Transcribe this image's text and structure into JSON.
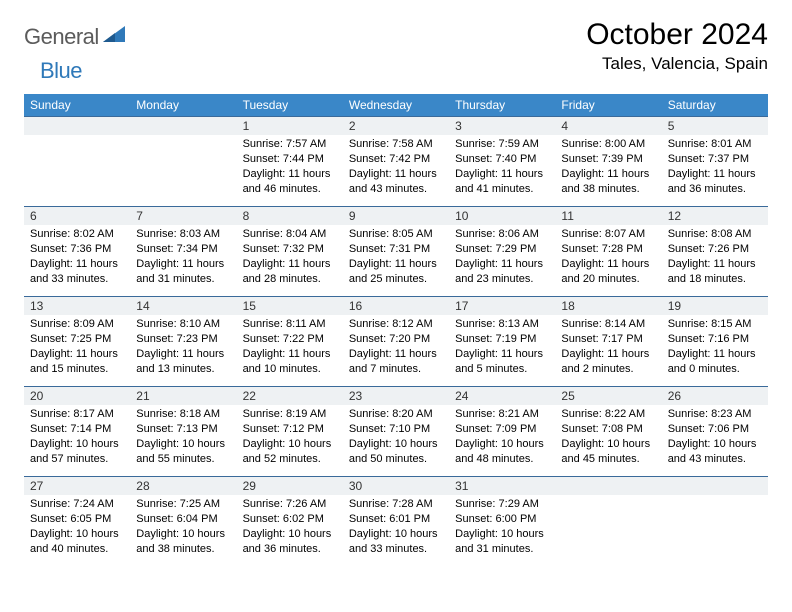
{
  "brand": {
    "word1": "General",
    "word2": "Blue",
    "triangle_color": "#2f79b9"
  },
  "title": {
    "month": "October 2024",
    "location": "Tales, Valencia, Spain"
  },
  "colors": {
    "header_bg": "#3a87c8",
    "header_text": "#ffffff",
    "cell_border": "#3a6a9a",
    "daynum_bg": "#eef1f3",
    "page_bg": "#ffffff"
  },
  "weekdays": [
    "Sunday",
    "Monday",
    "Tuesday",
    "Wednesday",
    "Thursday",
    "Friday",
    "Saturday"
  ],
  "weeks": [
    [
      {
        "n": "",
        "sr": "",
        "ss": "",
        "dl": ""
      },
      {
        "n": "",
        "sr": "",
        "ss": "",
        "dl": ""
      },
      {
        "n": "1",
        "sr": "Sunrise: 7:57 AM",
        "ss": "Sunset: 7:44 PM",
        "dl": "Daylight: 11 hours and 46 minutes."
      },
      {
        "n": "2",
        "sr": "Sunrise: 7:58 AM",
        "ss": "Sunset: 7:42 PM",
        "dl": "Daylight: 11 hours and 43 minutes."
      },
      {
        "n": "3",
        "sr": "Sunrise: 7:59 AM",
        "ss": "Sunset: 7:40 PM",
        "dl": "Daylight: 11 hours and 41 minutes."
      },
      {
        "n": "4",
        "sr": "Sunrise: 8:00 AM",
        "ss": "Sunset: 7:39 PM",
        "dl": "Daylight: 11 hours and 38 minutes."
      },
      {
        "n": "5",
        "sr": "Sunrise: 8:01 AM",
        "ss": "Sunset: 7:37 PM",
        "dl": "Daylight: 11 hours and 36 minutes."
      }
    ],
    [
      {
        "n": "6",
        "sr": "Sunrise: 8:02 AM",
        "ss": "Sunset: 7:36 PM",
        "dl": "Daylight: 11 hours and 33 minutes."
      },
      {
        "n": "7",
        "sr": "Sunrise: 8:03 AM",
        "ss": "Sunset: 7:34 PM",
        "dl": "Daylight: 11 hours and 31 minutes."
      },
      {
        "n": "8",
        "sr": "Sunrise: 8:04 AM",
        "ss": "Sunset: 7:32 PM",
        "dl": "Daylight: 11 hours and 28 minutes."
      },
      {
        "n": "9",
        "sr": "Sunrise: 8:05 AM",
        "ss": "Sunset: 7:31 PM",
        "dl": "Daylight: 11 hours and 25 minutes."
      },
      {
        "n": "10",
        "sr": "Sunrise: 8:06 AM",
        "ss": "Sunset: 7:29 PM",
        "dl": "Daylight: 11 hours and 23 minutes."
      },
      {
        "n": "11",
        "sr": "Sunrise: 8:07 AM",
        "ss": "Sunset: 7:28 PM",
        "dl": "Daylight: 11 hours and 20 minutes."
      },
      {
        "n": "12",
        "sr": "Sunrise: 8:08 AM",
        "ss": "Sunset: 7:26 PM",
        "dl": "Daylight: 11 hours and 18 minutes."
      }
    ],
    [
      {
        "n": "13",
        "sr": "Sunrise: 8:09 AM",
        "ss": "Sunset: 7:25 PM",
        "dl": "Daylight: 11 hours and 15 minutes."
      },
      {
        "n": "14",
        "sr": "Sunrise: 8:10 AM",
        "ss": "Sunset: 7:23 PM",
        "dl": "Daylight: 11 hours and 13 minutes."
      },
      {
        "n": "15",
        "sr": "Sunrise: 8:11 AM",
        "ss": "Sunset: 7:22 PM",
        "dl": "Daylight: 11 hours and 10 minutes."
      },
      {
        "n": "16",
        "sr": "Sunrise: 8:12 AM",
        "ss": "Sunset: 7:20 PM",
        "dl": "Daylight: 11 hours and 7 minutes."
      },
      {
        "n": "17",
        "sr": "Sunrise: 8:13 AM",
        "ss": "Sunset: 7:19 PM",
        "dl": "Daylight: 11 hours and 5 minutes."
      },
      {
        "n": "18",
        "sr": "Sunrise: 8:14 AM",
        "ss": "Sunset: 7:17 PM",
        "dl": "Daylight: 11 hours and 2 minutes."
      },
      {
        "n": "19",
        "sr": "Sunrise: 8:15 AM",
        "ss": "Sunset: 7:16 PM",
        "dl": "Daylight: 11 hours and 0 minutes."
      }
    ],
    [
      {
        "n": "20",
        "sr": "Sunrise: 8:17 AM",
        "ss": "Sunset: 7:14 PM",
        "dl": "Daylight: 10 hours and 57 minutes."
      },
      {
        "n": "21",
        "sr": "Sunrise: 8:18 AM",
        "ss": "Sunset: 7:13 PM",
        "dl": "Daylight: 10 hours and 55 minutes."
      },
      {
        "n": "22",
        "sr": "Sunrise: 8:19 AM",
        "ss": "Sunset: 7:12 PM",
        "dl": "Daylight: 10 hours and 52 minutes."
      },
      {
        "n": "23",
        "sr": "Sunrise: 8:20 AM",
        "ss": "Sunset: 7:10 PM",
        "dl": "Daylight: 10 hours and 50 minutes."
      },
      {
        "n": "24",
        "sr": "Sunrise: 8:21 AM",
        "ss": "Sunset: 7:09 PM",
        "dl": "Daylight: 10 hours and 48 minutes."
      },
      {
        "n": "25",
        "sr": "Sunrise: 8:22 AM",
        "ss": "Sunset: 7:08 PM",
        "dl": "Daylight: 10 hours and 45 minutes."
      },
      {
        "n": "26",
        "sr": "Sunrise: 8:23 AM",
        "ss": "Sunset: 7:06 PM",
        "dl": "Daylight: 10 hours and 43 minutes."
      }
    ],
    [
      {
        "n": "27",
        "sr": "Sunrise: 7:24 AM",
        "ss": "Sunset: 6:05 PM",
        "dl": "Daylight: 10 hours and 40 minutes."
      },
      {
        "n": "28",
        "sr": "Sunrise: 7:25 AM",
        "ss": "Sunset: 6:04 PM",
        "dl": "Daylight: 10 hours and 38 minutes."
      },
      {
        "n": "29",
        "sr": "Sunrise: 7:26 AM",
        "ss": "Sunset: 6:02 PM",
        "dl": "Daylight: 10 hours and 36 minutes."
      },
      {
        "n": "30",
        "sr": "Sunrise: 7:28 AM",
        "ss": "Sunset: 6:01 PM",
        "dl": "Daylight: 10 hours and 33 minutes."
      },
      {
        "n": "31",
        "sr": "Sunrise: 7:29 AM",
        "ss": "Sunset: 6:00 PM",
        "dl": "Daylight: 10 hours and 31 minutes."
      },
      {
        "n": "",
        "sr": "",
        "ss": "",
        "dl": ""
      },
      {
        "n": "",
        "sr": "",
        "ss": "",
        "dl": ""
      }
    ]
  ]
}
